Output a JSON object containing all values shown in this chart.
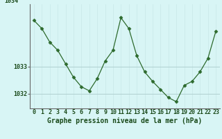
{
  "title": "Graphe pression niveau de la mer (hPa)",
  "hours": [
    0,
    1,
    2,
    3,
    4,
    5,
    6,
    7,
    8,
    9,
    10,
    11,
    12,
    13,
    14,
    15,
    16,
    17,
    18,
    19,
    20,
    21,
    22,
    23
  ],
  "values": [
    1034.7,
    1034.4,
    1033.9,
    1033.6,
    1033.1,
    1032.6,
    1032.25,
    1032.1,
    1032.55,
    1033.2,
    1033.6,
    1034.8,
    1034.4,
    1033.4,
    1032.8,
    1032.45,
    1032.15,
    1031.85,
    1031.7,
    1032.3,
    1032.45,
    1032.8,
    1033.3,
    1034.3
  ],
  "line_color": "#2d6a2d",
  "marker": "D",
  "marker_size": 2.5,
  "bg_color": "#d8f5f5",
  "grid_color_minor": "#c8e8e8",
  "grid_color_major": "#b0d0d0",
  "ytick_values": [
    1032,
    1033
  ],
  "ytick_labels": [
    "1032",
    "1033"
  ],
  "ylim": [
    1031.45,
    1035.3
  ],
  "xlim": [
    -0.5,
    23.5
  ],
  "tick_fontsize": 6.0,
  "title_fontsize": 7.0
}
